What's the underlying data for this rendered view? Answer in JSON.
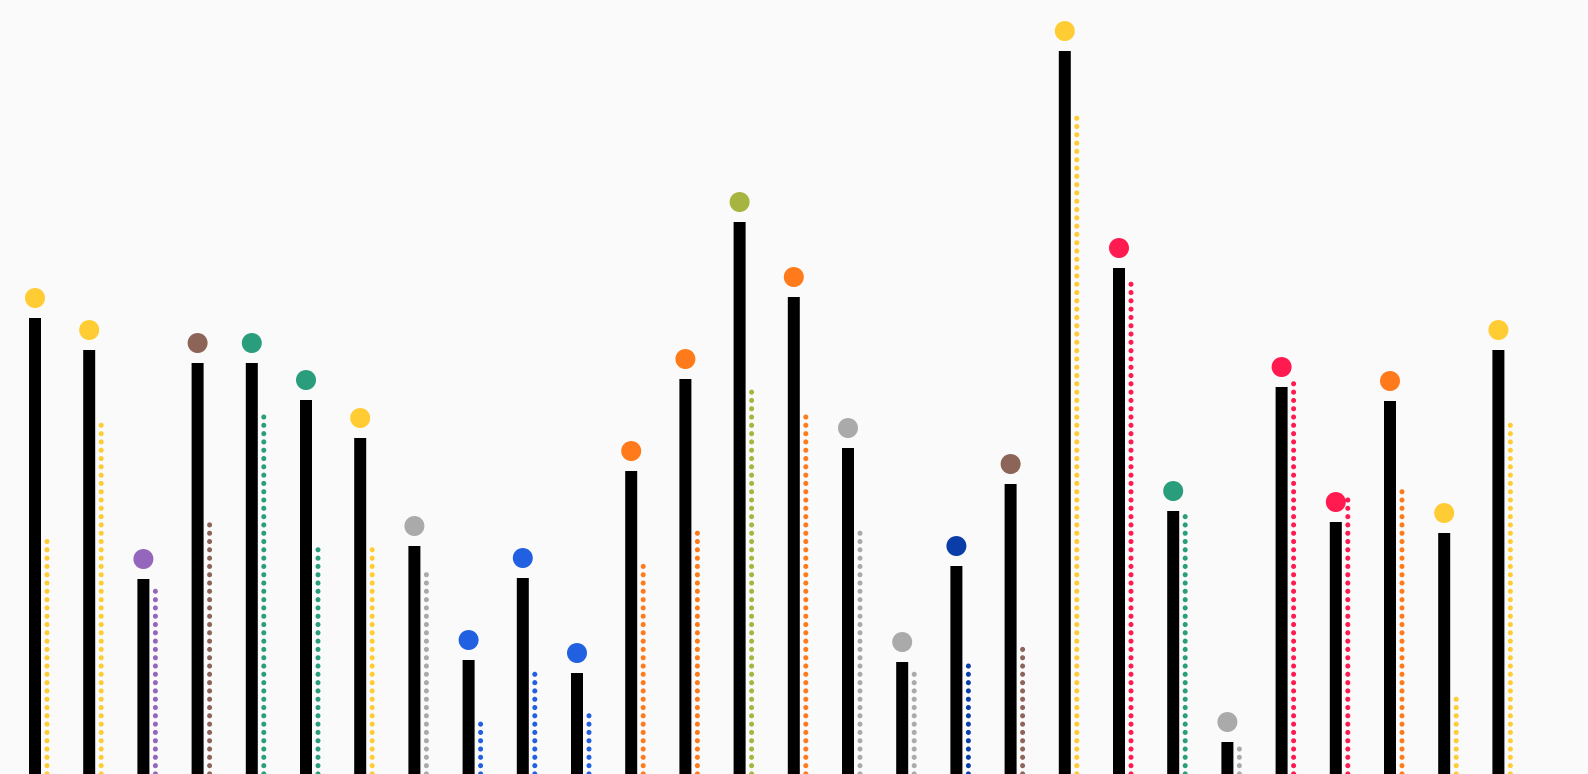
{
  "chart_data": {
    "type": "lollipop",
    "title": "",
    "xlabel": "",
    "ylabel": "",
    "grid": false,
    "legend": "none",
    "ylim": [
      0,
      740
    ],
    "items": [
      {
        "value": 456,
        "secondary": 237,
        "color": "#ffcc33"
      },
      {
        "value": 424,
        "secondary": 356,
        "color": "#ffcc33"
      },
      {
        "value": 195,
        "secondary": 186,
        "color": "#9467bd"
      },
      {
        "value": 411,
        "secondary": 251,
        "color": "#8c6458"
      },
      {
        "value": 411,
        "secondary": 360,
        "color": "#2a9d7c"
      },
      {
        "value": 374,
        "secondary": 229,
        "color": "#2a9d7c"
      },
      {
        "value": 336,
        "secondary": 229,
        "color": "#ffcc33"
      },
      {
        "value": 228,
        "secondary": 204,
        "color": "#aaaaaa"
      },
      {
        "value": 114,
        "secondary": 50,
        "color": "#2160e0"
      },
      {
        "value": 196,
        "secondary": 101,
        "color": "#2160e0"
      },
      {
        "value": 101,
        "secondary": 65,
        "color": "#2160e0"
      },
      {
        "value": 303,
        "secondary": 212,
        "color": "#ff7a1a"
      },
      {
        "value": 395,
        "secondary": 243,
        "color": "#ff7a1a"
      },
      {
        "value": 552,
        "secondary": 388,
        "color": "#a6b53f"
      },
      {
        "value": 477,
        "secondary": 363,
        "color": "#ff7a1a"
      },
      {
        "value": 326,
        "secondary": 246,
        "color": "#aaaaaa"
      },
      {
        "value": 112,
        "secondary": 107,
        "color": "#aaaaaa"
      },
      {
        "value": 208,
        "secondary": 112,
        "color": "#0a3da8"
      },
      {
        "value": 290,
        "secondary": 129,
        "color": "#8c6458"
      },
      {
        "value": 723,
        "secondary": 664,
        "color": "#ffcc33"
      },
      {
        "value": 506,
        "secondary": 497,
        "color": "#ff1a4f"
      },
      {
        "value": 263,
        "secondary": 260,
        "color": "#2a9d7c"
      },
      {
        "value": 32,
        "secondary": 28,
        "color": "#aaaaaa"
      },
      {
        "value": 387,
        "secondary": 394,
        "color": "#ff1a4f"
      },
      {
        "value": 252,
        "secondary": 279,
        "color": "#ff1a4f"
      },
      {
        "value": 373,
        "secondary": 288,
        "color": "#ff7a1a"
      },
      {
        "value": 241,
        "secondary": 82,
        "color": "#ffcc33"
      },
      {
        "value": 424,
        "secondary": 356,
        "color": "#ffcc33"
      }
    ]
  }
}
